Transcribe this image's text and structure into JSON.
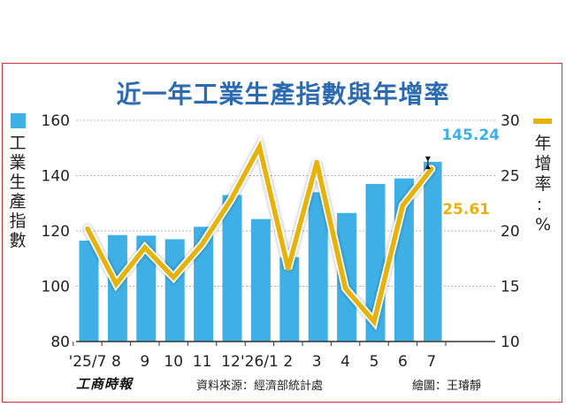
{
  "chart_data": {
    "type": "bar",
    "title": "近一年工業生產指數與年增率",
    "categories": [
      "'25/7",
      "8",
      "9",
      "10",
      "11",
      "12",
      "'26/1",
      "2",
      "3",
      "4",
      "5",
      "6",
      "7"
    ],
    "series": [
      {
        "name": "工業生產指數",
        "type": "bar",
        "axis": "left",
        "values": [
          116.5,
          118.5,
          118.3,
          117.0,
          121.5,
          133.0,
          124.3,
          110.5,
          134.0,
          126.5,
          137.0,
          139.0,
          145.24
        ]
      },
      {
        "name": "年增率",
        "type": "line",
        "axis": "right",
        "values": [
          20.2,
          15.2,
          18.5,
          15.8,
          18.8,
          22.8,
          27.6,
          16.6,
          26.2,
          14.8,
          11.8,
          22.3,
          25.61
        ]
      }
    ],
    "left_axis": {
      "label": "工業生產指數",
      "range": [
        80,
        160
      ],
      "ticks": [
        80,
        100,
        120,
        140,
        160
      ]
    },
    "right_axis": {
      "label": "年增率：%",
      "range": [
        10,
        30
      ],
      "ticks": [
        10,
        15,
        20,
        25,
        30
      ]
    },
    "annotations": [
      {
        "category": "7",
        "series": "工業生產指數",
        "text": "145.24",
        "color": "#3fb0e6"
      },
      {
        "category": "7",
        "series": "年增率",
        "text": "25.61",
        "color": "#e6b20e"
      }
    ],
    "colors": {
      "bar": "#3fb0e6",
      "line": "#e6b20e",
      "title": "#2c6bb0"
    },
    "grid": true
  },
  "footer": {
    "publisher": "工商時報",
    "source": "資料來源：經濟部統計處",
    "credit": "繪圖：王璿靜"
  }
}
